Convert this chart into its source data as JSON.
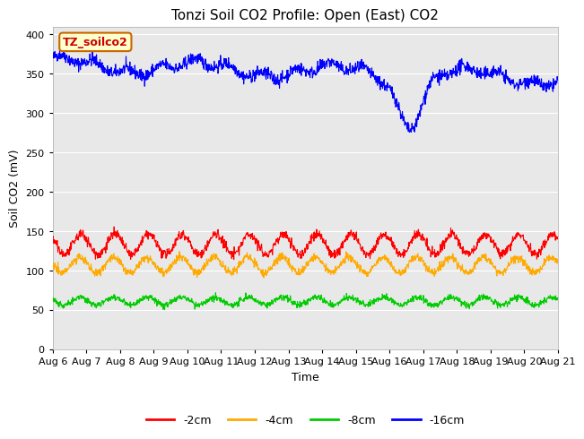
{
  "title": "Tonzi Soil CO2 Profile: Open (East) CO2",
  "ylabel": "Soil CO2 (mV)",
  "xlabel": "Time",
  "ylim": [
    0,
    410
  ],
  "yticks": [
    0,
    50,
    100,
    150,
    200,
    250,
    300,
    350,
    400
  ],
  "xtick_labels": [
    "Aug 6",
    "Aug 7",
    "Aug 8",
    "Aug 9",
    "Aug 10",
    "Aug 11",
    "Aug 12",
    "Aug 13",
    "Aug 14",
    "Aug 15",
    "Aug 16",
    "Aug 17",
    "Aug 18",
    "Aug 19",
    "Aug 20",
    "Aug 21"
  ],
  "legend_label": "TZ_soilco2",
  "legend_bbox_color": "#ffffcc",
  "legend_border_color": "#cc6600",
  "colors": {
    "cm2": "#ff0000",
    "cm4": "#ffaa00",
    "cm8": "#00cc00",
    "cm16": "#0000ff"
  },
  "line_labels": [
    "-2cm",
    "-4cm",
    "-8cm",
    "-16cm"
  ],
  "fig_bg_color": "#ffffff",
  "plot_bg_color": "#e8e8e8",
  "title_fontsize": 11,
  "axis_fontsize": 9,
  "tick_fontsize": 8,
  "legend_fontsize": 9
}
